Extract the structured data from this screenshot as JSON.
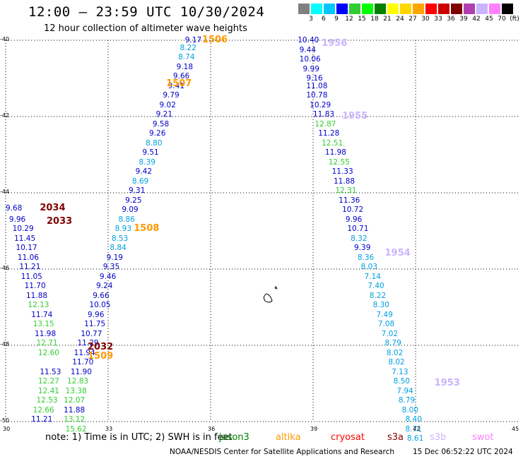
{
  "header": {
    "title": "12:00 – 23:59 UTC 10/30/2024",
    "subtitle": "12 hour collection of altimeter wave heights"
  },
  "colorbar": {
    "colors": [
      "#808080",
      "#00ffff",
      "#00c8ff",
      "#0000ff",
      "#32cd32",
      "#00ff00",
      "#008000",
      "#ffff00",
      "#ffd700",
      "#ffa500",
      "#ff0000",
      "#cc0000",
      "#800000",
      "#b040b0",
      "#c8b4ff",
      "#ff80ff",
      "#000000"
    ],
    "labels": [
      "3",
      "6",
      "9",
      "12",
      "15",
      "18",
      "21",
      "24",
      "27",
      "30",
      "33",
      "36",
      "39",
      "42",
      "45",
      "70",
      "(ft)"
    ]
  },
  "axes": {
    "y_ticks": [
      "-40",
      "-42",
      "-44",
      "-46",
      "-48",
      "-50"
    ],
    "x_ticks": [
      "30",
      "33",
      "36",
      "39",
      "42",
      "45"
    ]
  },
  "chart_data": {
    "type": "scatter",
    "xlim": [
      30,
      45
    ],
    "ylim": [
      -50,
      -40
    ],
    "colors_by_band": {
      "9": "#00a0e0",
      "12": "#0000c8",
      "15": "#32cd32"
    },
    "tracks": [
      {
        "label": "1506",
        "color": "#ff9900",
        "lon": 35.75,
        "lat": -40.0
      },
      {
        "label": "1507",
        "color": "#ff9900",
        "lon": 34.7,
        "lat": -41.15
      },
      {
        "label": "1508",
        "color": "#ff9900",
        "lon": 33.75,
        "lat": -44.95
      },
      {
        "label": "1509",
        "color": "#ff9900",
        "lon": 32.4,
        "lat": -48.3
      },
      {
        "label": "1956",
        "color": "#c8b4ff",
        "lon": 39.25,
        "lat": -40.1
      },
      {
        "label": "1955",
        "color": "#c8b4ff",
        "lon": 39.85,
        "lat": -42.0
      },
      {
        "label": "1954",
        "color": "#c8b4ff",
        "lon": 41.1,
        "lat": -45.6
      },
      {
        "label": "1953",
        "color": "#c8b4ff",
        "lon": 42.55,
        "lat": -49.0
      },
      {
        "label": "2034",
        "color": "#800000",
        "lon": 31.0,
        "lat": -44.4
      },
      {
        "label": "2033",
        "color": "#800000",
        "lon": 31.2,
        "lat": -44.75
      },
      {
        "label": "2032",
        "color": "#800000",
        "lon": 32.4,
        "lat": -48.05
      }
    ],
    "points": [
      {
        "v": "9.17",
        "c": "12",
        "lon": 35.25,
        "lat": -40.0
      },
      {
        "v": "8.22",
        "c": "9",
        "lon": 35.1,
        "lat": -40.2
      },
      {
        "v": "8.74",
        "c": "9",
        "lon": 35.05,
        "lat": -40.45
      },
      {
        "v": "9.18",
        "c": "12",
        "lon": 35.0,
        "lat": -40.7
      },
      {
        "v": "9.66",
        "c": "12",
        "lon": 34.9,
        "lat": -40.95
      },
      {
        "v": "9.41",
        "c": "12",
        "lon": 34.75,
        "lat": -41.2
      },
      {
        "v": "9.79",
        "c": "12",
        "lon": 34.6,
        "lat": -41.45
      },
      {
        "v": "9.02",
        "c": "12",
        "lon": 34.5,
        "lat": -41.7
      },
      {
        "v": "9.21",
        "c": "12",
        "lon": 34.4,
        "lat": -41.95
      },
      {
        "v": "9.58",
        "c": "12",
        "lon": 34.3,
        "lat": -42.2
      },
      {
        "v": "9.26",
        "c": "12",
        "lon": 34.2,
        "lat": -42.45
      },
      {
        "v": "8.80",
        "c": "9",
        "lon": 34.1,
        "lat": -42.7
      },
      {
        "v": "9.51",
        "c": "12",
        "lon": 34.0,
        "lat": -42.95
      },
      {
        "v": "8.39",
        "c": "9",
        "lon": 33.9,
        "lat": -43.2
      },
      {
        "v": "9.42",
        "c": "12",
        "lon": 33.8,
        "lat": -43.45
      },
      {
        "v": "8.69",
        "c": "9",
        "lon": 33.7,
        "lat": -43.7
      },
      {
        "v": "9.31",
        "c": "12",
        "lon": 33.6,
        "lat": -43.95
      },
      {
        "v": "9.25",
        "c": "12",
        "lon": 33.5,
        "lat": -44.2
      },
      {
        "v": "9.09",
        "c": "12",
        "lon": 33.4,
        "lat": -44.45
      },
      {
        "v": "8.86",
        "c": "9",
        "lon": 33.3,
        "lat": -44.7
      },
      {
        "v": "8.93",
        "c": "9",
        "lon": 33.2,
        "lat": -44.95
      },
      {
        "v": "8.53",
        "c": "9",
        "lon": 33.1,
        "lat": -45.2
      },
      {
        "v": "8.84",
        "c": "9",
        "lon": 33.05,
        "lat": -45.45
      },
      {
        "v": "9.19",
        "c": "12",
        "lon": 32.95,
        "lat": -45.7
      },
      {
        "v": "9.35",
        "c": "12",
        "lon": 32.85,
        "lat": -45.95
      },
      {
        "v": "9.46",
        "c": "12",
        "lon": 32.75,
        "lat": -46.2
      },
      {
        "v": "9.24",
        "c": "12",
        "lon": 32.65,
        "lat": -46.45
      },
      {
        "v": "9.66",
        "c": "12",
        "lon": 32.55,
        "lat": -46.7
      },
      {
        "v": "10.05",
        "c": "12",
        "lon": 32.45,
        "lat": -46.95
      },
      {
        "v": "9.96",
        "c": "12",
        "lon": 32.4,
        "lat": -47.2
      },
      {
        "v": "11.75",
        "c": "12",
        "lon": 32.3,
        "lat": -47.45
      },
      {
        "v": "10.77",
        "c": "12",
        "lon": 32.2,
        "lat": -47.7
      },
      {
        "v": "11.29",
        "c": "12",
        "lon": 32.1,
        "lat": -47.95
      },
      {
        "v": "11.94",
        "c": "12",
        "lon": 32.0,
        "lat": -48.2
      },
      {
        "v": "11.70",
        "c": "12",
        "lon": 31.95,
        "lat": -48.45
      },
      {
        "v": "11.90",
        "c": "12",
        "lon": 31.9,
        "lat": -48.7
      },
      {
        "v": "12.83",
        "c": "15",
        "lon": 31.8,
        "lat": -48.95
      },
      {
        "v": "13.38",
        "c": "15",
        "lon": 31.75,
        "lat": -49.2
      },
      {
        "v": "12.07",
        "c": "15",
        "lon": 31.7,
        "lat": -49.45
      },
      {
        "v": "11.88",
        "c": "12",
        "lon": 31.7,
        "lat": -49.7
      },
      {
        "v": "13.12",
        "c": "15",
        "lon": 31.7,
        "lat": -49.95
      },
      {
        "v": "15.62",
        "c": "15",
        "lon": 31.75,
        "lat": -50.2
      },
      {
        "v": "9.68",
        "c": "12",
        "lon": 30.0,
        "lat": -44.4
      },
      {
        "v": "9.96",
        "c": "12",
        "lon": 30.1,
        "lat": -44.7
      },
      {
        "v": "10.29",
        "c": "12",
        "lon": 30.2,
        "lat": -44.95
      },
      {
        "v": "11.45",
        "c": "12",
        "lon": 30.25,
        "lat": -45.2
      },
      {
        "v": "10.17",
        "c": "12",
        "lon": 30.3,
        "lat": -45.45
      },
      {
        "v": "11.06",
        "c": "12",
        "lon": 30.35,
        "lat": -45.7
      },
      {
        "v": "11.21",
        "c": "12",
        "lon": 30.4,
        "lat": -45.95
      },
      {
        "v": "11.05",
        "c": "12",
        "lon": 30.45,
        "lat": -46.2
      },
      {
        "v": "11.70",
        "c": "12",
        "lon": 30.55,
        "lat": -46.45
      },
      {
        "v": "11.88",
        "c": "12",
        "lon": 30.6,
        "lat": -46.7
      },
      {
        "v": "12.13",
        "c": "15",
        "lon": 30.65,
        "lat": -46.95
      },
      {
        "v": "11.74",
        "c": "12",
        "lon": 30.75,
        "lat": -47.2
      },
      {
        "v": "13.15",
        "c": "15",
        "lon": 30.8,
        "lat": -47.45
      },
      {
        "v": "11.98",
        "c": "12",
        "lon": 30.85,
        "lat": -47.7
      },
      {
        "v": "12.71",
        "c": "15",
        "lon": 30.9,
        "lat": -47.95
      },
      {
        "v": "12.60",
        "c": "15",
        "lon": 30.95,
        "lat": -48.2
      },
      {
        "v": "11.53",
        "c": "12",
        "lon": 31.0,
        "lat": -48.7
      },
      {
        "v": "12.27",
        "c": "15",
        "lon": 30.95,
        "lat": -48.95
      },
      {
        "v": "12.41",
        "c": "15",
        "lon": 30.95,
        "lat": -49.2
      },
      {
        "v": "12.53",
        "c": "15",
        "lon": 30.9,
        "lat": -49.45
      },
      {
        "v": "12.66",
        "c": "15",
        "lon": 30.8,
        "lat": -49.7
      },
      {
        "v": "11.21",
        "c": "12",
        "lon": 30.75,
        "lat": -49.95
      },
      {
        "v": "10.40",
        "c": "12",
        "lon": 38.55,
        "lat": -40.0
      },
      {
        "v": "9.44",
        "c": "12",
        "lon": 38.6,
        "lat": -40.25
      },
      {
        "v": "10.06",
        "c": "12",
        "lon": 38.6,
        "lat": -40.5
      },
      {
        "v": "9.99",
        "c": "12",
        "lon": 38.7,
        "lat": -40.75
      },
      {
        "v": "9.16",
        "c": "12",
        "lon": 38.8,
        "lat": -41.0
      },
      {
        "v": "11.08",
        "c": "12",
        "lon": 38.8,
        "lat": -41.2
      },
      {
        "v": "10.78",
        "c": "12",
        "lon": 38.8,
        "lat": -41.45
      },
      {
        "v": "10.29",
        "c": "12",
        "lon": 38.9,
        "lat": -41.7
      },
      {
        "v": "11.83",
        "c": "12",
        "lon": 39.0,
        "lat": -41.95
      },
      {
        "v": "12.87",
        "c": "15",
        "lon": 39.05,
        "lat": -42.2
      },
      {
        "v": "11.28",
        "c": "12",
        "lon": 39.15,
        "lat": -42.45
      },
      {
        "v": "12.51",
        "c": "15",
        "lon": 39.25,
        "lat": -42.7
      },
      {
        "v": "11.98",
        "c": "12",
        "lon": 39.35,
        "lat": -42.95
      },
      {
        "v": "12.55",
        "c": "15",
        "lon": 39.45,
        "lat": -43.2
      },
      {
        "v": "11.33",
        "c": "12",
        "lon": 39.55,
        "lat": -43.45
      },
      {
        "v": "11.88",
        "c": "12",
        "lon": 39.6,
        "lat": -43.7
      },
      {
        "v": "12.31",
        "c": "15",
        "lon": 39.65,
        "lat": -43.95
      },
      {
        "v": "11.36",
        "c": "12",
        "lon": 39.75,
        "lat": -44.2
      },
      {
        "v": "10.72",
        "c": "12",
        "lon": 39.85,
        "lat": -44.45
      },
      {
        "v": "9.96",
        "c": "12",
        "lon": 39.95,
        "lat": -44.7
      },
      {
        "v": "10.71",
        "c": "12",
        "lon": 40.0,
        "lat": -44.95
      },
      {
        "v": "8.32",
        "c": "9",
        "lon": 40.1,
        "lat": -45.2
      },
      {
        "v": "9.39",
        "c": "12",
        "lon": 40.2,
        "lat": -45.45
      },
      {
        "v": "8.36",
        "c": "9",
        "lon": 40.3,
        "lat": -45.7
      },
      {
        "v": "8.03",
        "c": "9",
        "lon": 40.4,
        "lat": -45.95
      },
      {
        "v": "7.14",
        "c": "9",
        "lon": 40.5,
        "lat": -46.2
      },
      {
        "v": "7.40",
        "c": "9",
        "lon": 40.6,
        "lat": -46.45
      },
      {
        "v": "8.22",
        "c": "9",
        "lon": 40.65,
        "lat": -46.7
      },
      {
        "v": "8.30",
        "c": "9",
        "lon": 40.75,
        "lat": -46.95
      },
      {
        "v": "7.49",
        "c": "9",
        "lon": 40.85,
        "lat": -47.2
      },
      {
        "v": "7.08",
        "c": "9",
        "lon": 40.9,
        "lat": -47.45
      },
      {
        "v": "7.02",
        "c": "9",
        "lon": 41.0,
        "lat": -47.7
      },
      {
        "v": "8.79",
        "c": "9",
        "lon": 41.1,
        "lat": -47.95
      },
      {
        "v": "8.02",
        "c": "9",
        "lon": 41.15,
        "lat": -48.2
      },
      {
        "v": "8.02",
        "c": "9",
        "lon": 41.2,
        "lat": -48.45
      },
      {
        "v": "7.13",
        "c": "9",
        "lon": 41.3,
        "lat": -48.7
      },
      {
        "v": "8.50",
        "c": "9",
        "lon": 41.35,
        "lat": -48.95
      },
      {
        "v": "7.94",
        "c": "9",
        "lon": 41.45,
        "lat": -49.2
      },
      {
        "v": "8.79",
        "c": "9",
        "lon": 41.5,
        "lat": -49.45
      },
      {
        "v": "8.00",
        "c": "9",
        "lon": 41.6,
        "lat": -49.7
      },
      {
        "v": "8.40",
        "c": "9",
        "lon": 41.7,
        "lat": -49.95
      },
      {
        "v": "8.71",
        "c": "9",
        "lon": 41.7,
        "lat": -50.2
      },
      {
        "v": "8.61",
        "c": "9",
        "lon": 41.75,
        "lat": -50.45
      }
    ]
  },
  "footer": {
    "note": "note:  1) Time is in UTC; 2) SWH is in feet",
    "satellites": [
      {
        "name": "jason3",
        "color": "#008000"
      },
      {
        "name": "altika",
        "color": "#ff9900"
      },
      {
        "name": "cryosat",
        "color": "#ff0000"
      },
      {
        "name": "s3a",
        "color": "#800000"
      },
      {
        "name": "s3b",
        "color": "#c8b4ff"
      },
      {
        "name": "swot",
        "color": "#ff80ff"
      }
    ],
    "credit": "NOAA/NESDIS Center for Satellite Applications and Research",
    "timestamp": "15 Dec 06:52:22 UTC 2024"
  }
}
